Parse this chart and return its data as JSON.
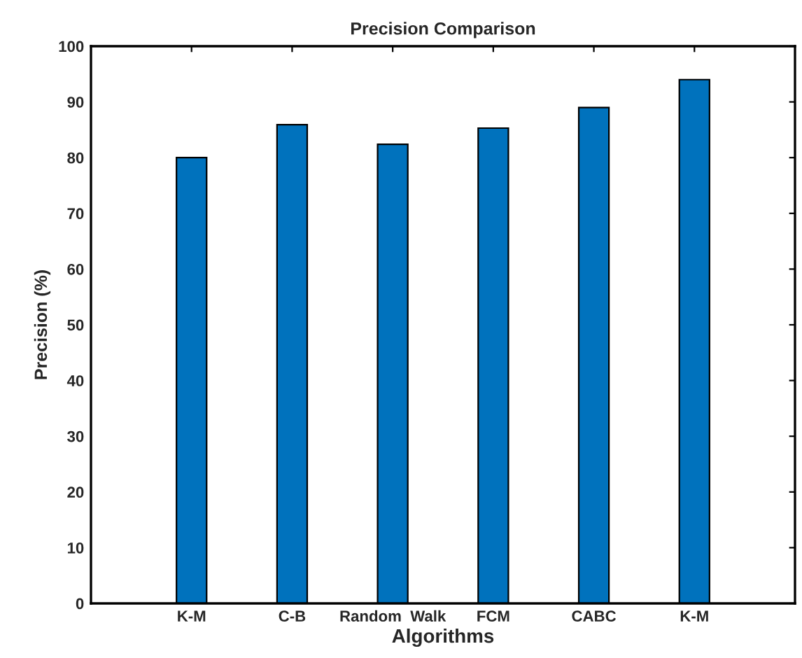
{
  "chart_data": {
    "type": "bar",
    "title": "Precision Comparison",
    "xlabel": "Algorithms",
    "ylabel": "Precision (%)",
    "categories": [
      "K-M",
      "C-B",
      "Random  Walk",
      "FCM",
      "CABC",
      "K-M"
    ],
    "values": [
      80,
      85.9,
      82.4,
      85.3,
      89,
      94
    ],
    "color": "#0072bd",
    "ylim": [
      0,
      100
    ],
    "yticks": [
      0,
      10,
      20,
      30,
      40,
      50,
      60,
      70,
      80,
      90,
      100
    ],
    "grid": false,
    "legend": false
  }
}
